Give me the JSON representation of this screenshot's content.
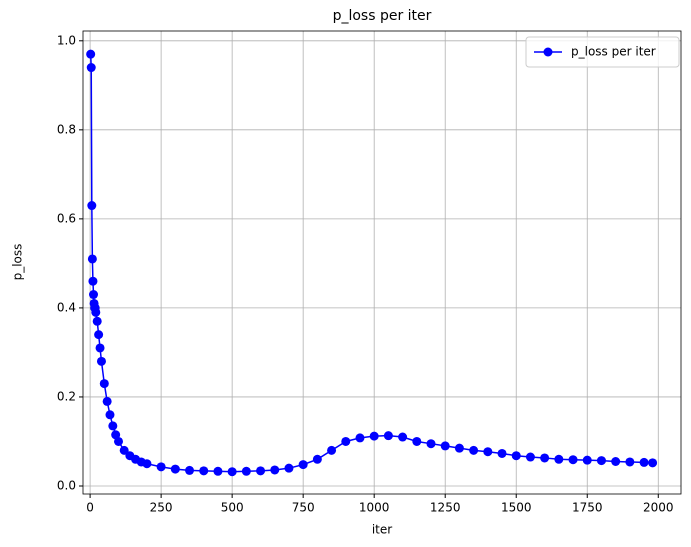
{
  "chart_data": {
    "type": "line",
    "title": "p_loss per iter",
    "x_label": "iter",
    "y_label": "p_loss",
    "x": [
      2,
      4,
      6,
      8,
      10,
      12,
      14,
      16,
      18,
      20,
      25,
      30,
      35,
      40,
      50,
      60,
      70,
      80,
      90,
      100,
      120,
      140,
      160,
      180,
      200,
      250,
      300,
      350,
      400,
      450,
      500,
      550,
      600,
      650,
      700,
      750,
      800,
      850,
      900,
      950,
      1000,
      1050,
      1100,
      1150,
      1200,
      1250,
      1300,
      1350,
      1400,
      1450,
      1500,
      1550,
      1600,
      1650,
      1700,
      1750,
      1800,
      1850,
      1900,
      1950,
      1980
    ],
    "series": [
      {
        "name": "p_loss per iter",
        "color": "#0000ff",
        "values": [
          0.97,
          0.94,
          0.63,
          0.51,
          0.46,
          0.43,
          0.41,
          0.4,
          0.4,
          0.39,
          0.37,
          0.34,
          0.31,
          0.28,
          0.23,
          0.19,
          0.16,
          0.135,
          0.115,
          0.1,
          0.08,
          0.068,
          0.06,
          0.054,
          0.05,
          0.043,
          0.038,
          0.035,
          0.034,
          0.033,
          0.032,
          0.033,
          0.034,
          0.036,
          0.04,
          0.048,
          0.06,
          0.08,
          0.1,
          0.108,
          0.112,
          0.113,
          0.11,
          0.1,
          0.095,
          0.09,
          0.085,
          0.08,
          0.077,
          0.073,
          0.068,
          0.065,
          0.063,
          0.06,
          0.059,
          0.058,
          0.057,
          0.055,
          0.054,
          0.053,
          0.052
        ]
      }
    ],
    "xlim": [
      -25,
      2080
    ],
    "ylim": [
      -0.018,
      1.022
    ],
    "xticks": [
      0,
      250,
      500,
      750,
      1000,
      1250,
      1500,
      1750,
      2000
    ],
    "yticks": [
      {
        "value": 0,
        "label": "0.0"
      },
      0.2,
      0.4,
      0.6,
      0.8,
      {
        "value": 1,
        "label": "1.0"
      }
    ],
    "grid": true,
    "legend": "upper-right"
  }
}
